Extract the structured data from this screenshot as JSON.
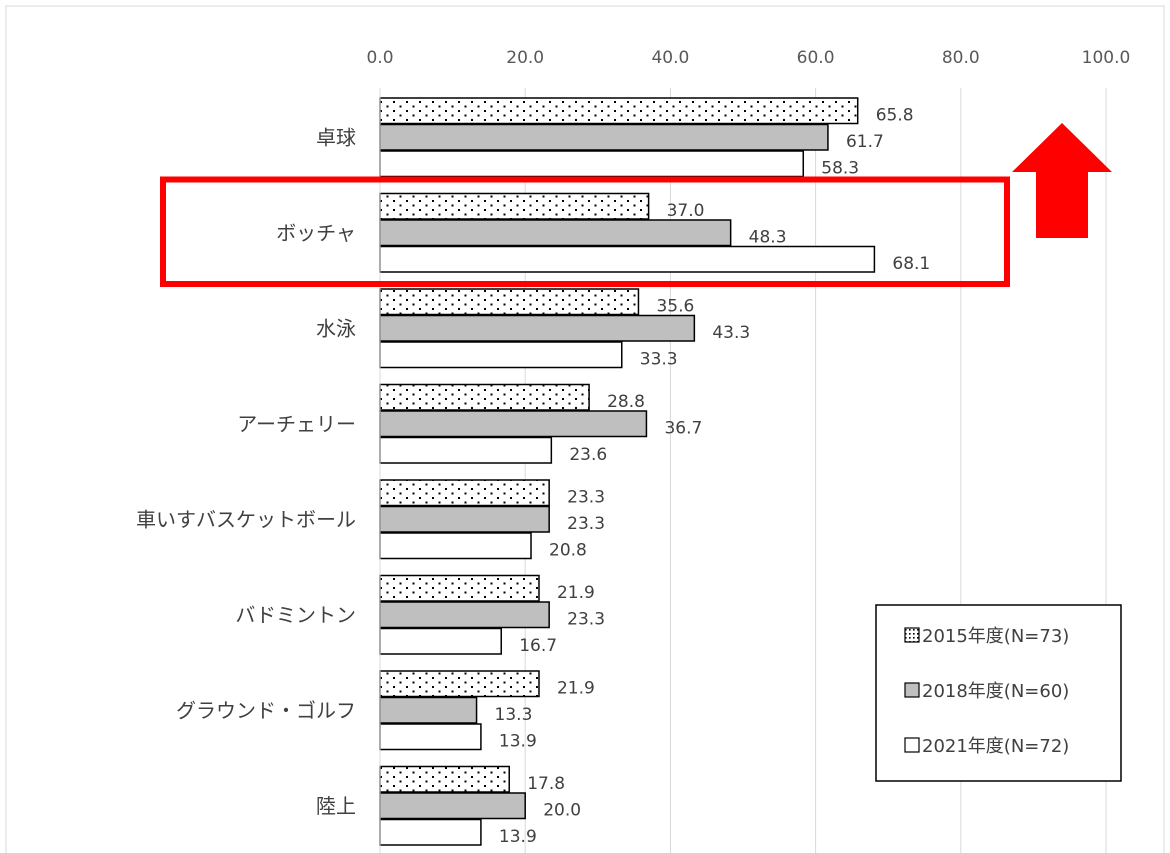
{
  "chart_data": {
    "type": "bar",
    "orientation": "horizontal",
    "title": "",
    "xlabel": "",
    "ylabel": "",
    "xlim": [
      0,
      100
    ],
    "ticks": [
      "0.0",
      "20.0",
      "40.0",
      "60.0",
      "80.0",
      "100.0"
    ],
    "tick_values": [
      0,
      20,
      40,
      60,
      80,
      100
    ],
    "grid": true,
    "legend_position": "bottom-right",
    "categories": [
      "卓球",
      "ボッチャ",
      "水泳",
      "アーチェリー",
      "車いすバスケットボール",
      "バドミントン",
      "グラウンド・ゴルフ",
      "陸上"
    ],
    "series": [
      {
        "name": "2015年度(N=73)",
        "pattern": "dotted",
        "fill": "#ffffff",
        "values": [
          65.8,
          37.0,
          35.6,
          28.8,
          23.3,
          21.9,
          21.9,
          17.8
        ],
        "labels": [
          "65.8",
          "37.0",
          "35.6",
          "28.8",
          "23.3",
          "21.9",
          "21.9",
          "17.8"
        ]
      },
      {
        "name": "2018年度(N=60)",
        "pattern": "solid",
        "fill": "#bfbfbf",
        "values": [
          61.7,
          48.3,
          43.3,
          36.7,
          23.3,
          23.3,
          13.3,
          20.0
        ],
        "labels": [
          "61.7",
          "48.3",
          "43.3",
          "36.7",
          "23.3",
          "23.3",
          "13.3",
          "20.0"
        ]
      },
      {
        "name": "2021年度(N=72)",
        "pattern": "none",
        "fill": "#ffffff",
        "values": [
          58.3,
          68.1,
          33.3,
          23.6,
          20.8,
          16.7,
          13.9,
          13.9
        ],
        "labels": [
          "58.3",
          "68.1",
          "33.3",
          "23.6",
          "20.8",
          "16.7",
          "13.9",
          "13.9"
        ]
      }
    ],
    "highlight": {
      "category": "ボッチャ",
      "color": "#ff0000"
    },
    "arrow": {
      "direction": "up",
      "color": "#ff0000"
    }
  }
}
